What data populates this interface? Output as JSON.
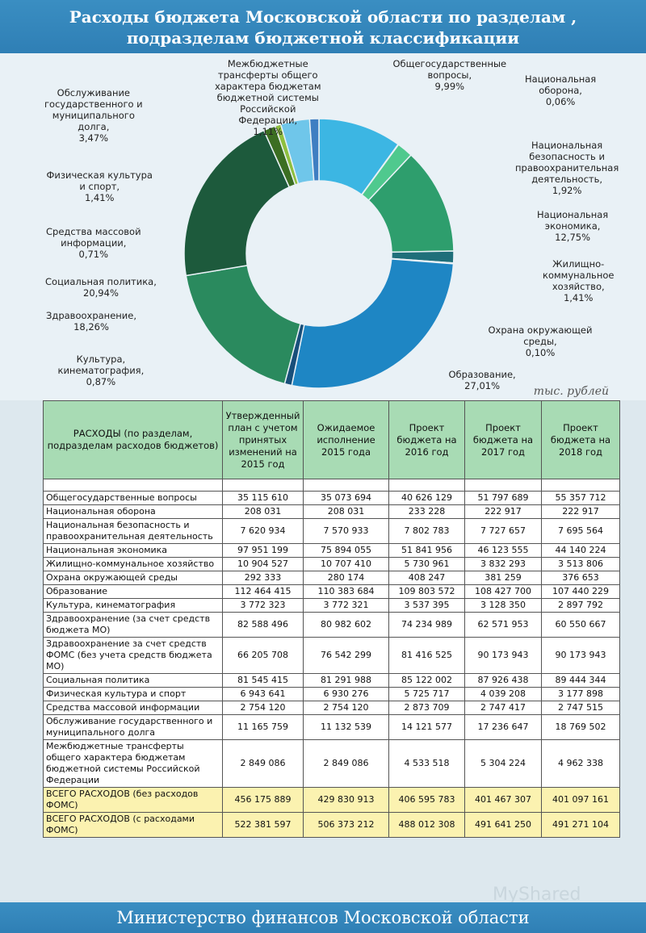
{
  "header": {
    "title_line1": "Расходы бюджета Московской области по разделам ,",
    "title_line2": "подразделам бюджетной классификации"
  },
  "chart_data": {
    "type": "pie",
    "donut": true,
    "categories": [
      "Общегосударственные вопросы",
      "Национальная оборона",
      "Национальная безопасность и правоохранительная деятельность",
      "Национальная экономика",
      "Жилищно-коммунальное хозяйство",
      "Охрана окружающей среды",
      "Образование",
      "Культура, кинематография",
      "Здравоохранение",
      "Социальная политика",
      "Физическая культура и спорт",
      "Средства массовой информации",
      "Обслуживание государственного и муниципального долга",
      "Межбюджетные трансферты общего характера бюджетам бюджетной системы Российской Федерации"
    ],
    "values": [
      9.99,
      0.06,
      1.92,
      12.75,
      1.41,
      0.1,
      27.01,
      0.87,
      18.26,
      20.94,
      1.41,
      0.71,
      3.47,
      1.11
    ],
    "colors": [
      "#3cb6e3",
      "#a6dba0",
      "#4fc98e",
      "#2e9e6d",
      "#1f6f7a",
      "#7ec8e3",
      "#1e86c4",
      "#184f7a",
      "#2a8a5e",
      "#1d5a3c",
      "#3c6e22",
      "#8fbf3f",
      "#6fc6ea",
      "#3f7ec2"
    ],
    "labels": [
      "Общегосударственные\nвопросы,\n9,99%",
      "Национальная\nоборона,\n0,06%",
      "Национальная\nбезопасность и\nправоохранительная\nдеятельность,\n1,92%",
      "Национальная\nэкономика,\n12,75%",
      "Жилищно-\nкоммунальное\nхозяйство,\n1,41%",
      "Охрана окружающей\nсреды,\n0,10%",
      "Образование,\n27,01%",
      "Культура,\nкинематография,\n0,87%",
      "Здравоохранение,\n18,26%",
      "Социальная политика,\n20,94%",
      "Физическая культура\nи спорт,\n1,41%",
      "Средства массовой\nинформации,\n0,71%",
      "Обслуживание\nгосударственного и\nмуниципального\nдолга,\n3,47%",
      "Межбюджетные\nтрансферты общего\nхарактера бюджетам\nбюджетной системы\nРоссийской\nФедерации,\n1,11%"
    ]
  },
  "unit_label": "тыс. рублей",
  "table": {
    "headers": [
      "РАСХОДЫ (по разделам, подразделам расходов бюджетов)",
      "Утвержденный план с учетом принятых изменений на 2015 год",
      "Ожидаемое исполнение 2015 года",
      "Проект бюджета на 2016 год",
      "Проект бюджета на 2017 год",
      "Проект бюджета на 2018 год"
    ],
    "rows": [
      [
        "Общегосударственные вопросы",
        "35 115 610",
        "35 073 694",
        "40 626 129",
        "51 797 689",
        "55 357 712"
      ],
      [
        "Национальная оборона",
        "208 031",
        "208 031",
        "233 228",
        "222 917",
        "222 917"
      ],
      [
        "Национальная безопасность и правоохранительная деятельность",
        "7 620 934",
        "7 570 933",
        "7 802 783",
        "7 727 657",
        "7 695 564"
      ],
      [
        "Национальная экономика",
        "97 951 199",
        "75 894 055",
        "51 841 956",
        "46 123 555",
        "44 140 224"
      ],
      [
        "Жилищно-коммунальное хозяйство",
        "10 904 527",
        "10 707 410",
        "5 730 961",
        "3 832 293",
        "3 513 806"
      ],
      [
        "Охрана окружающей среды",
        "292 333",
        "280 174",
        "408 247",
        "381 259",
        "376 653"
      ],
      [
        "Образование",
        "112 464 415",
        "110 383 684",
        "109 803 572",
        "108 427 700",
        "107 440 229"
      ],
      [
        "Культура, кинематография",
        "3 772 323",
        "3 772 321",
        "3 537 395",
        "3 128 350",
        "2 897 792"
      ],
      [
        "Здравоохранение (за счет средств бюджета МО)",
        "82 588 496",
        "80 982 602",
        "74 234 989",
        "62 571 953",
        "60 550 667"
      ],
      [
        "Здравоохранение за счет средств ФОМС (без учета средств бюджета МО)",
        "66 205 708",
        "76 542 299",
        "81 416 525",
        "90 173 943",
        "90 173 943"
      ],
      [
        "Социальная политика",
        "81 545 415",
        "81 291 988",
        "85 122 002",
        "87 926 438",
        "89 444 344"
      ],
      [
        "Физическая культура и спорт",
        "6 943 641",
        "6 930 276",
        "5 725 717",
        "4 039 208",
        "3 177 898"
      ],
      [
        "Средства массовой информации",
        "2 754 120",
        "2 754 120",
        "2 873 709",
        "2 747 417",
        "2 747 515"
      ],
      [
        "Обслуживание государственного и муниципального долга",
        "11 165 759",
        "11 132 539",
        "14 121 577",
        "17 236 647",
        "18 769 502"
      ],
      [
        "Межбюджетные трансферты общего характера бюджетам бюджетной системы Российской Федерации",
        "2 849 086",
        "2 849 086",
        "4 533 518",
        "5 304 224",
        "4 962 338"
      ]
    ],
    "totals": [
      [
        "ВСЕГО РАСХОДОВ (без расходов ФОМС)",
        "456 175 889",
        "429 830 913",
        "406 595 783",
        "401 467 307",
        "401 097 161"
      ],
      [
        "ВСЕГО РАСХОДОВ (с расходами ФОМС)",
        "522 381 597",
        "506 373 212",
        "488 012 308",
        "491 641 250",
        "491 271 104"
      ]
    ]
  },
  "watermark": "MyShared",
  "footer": {
    "text": "Министерство финансов Московской области"
  }
}
